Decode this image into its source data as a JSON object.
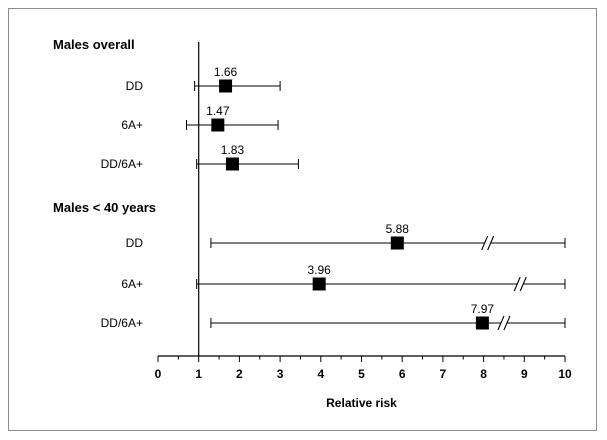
{
  "chart_data": {
    "type": "forest",
    "xlabel": "Relative risk",
    "xlim": [
      0,
      10
    ],
    "ticks": [
      0,
      1,
      2,
      3,
      4,
      5,
      6,
      7,
      8,
      9,
      10
    ],
    "reference_line": 1,
    "groups": [
      {
        "label": "Males overall",
        "rows": [
          {
            "label": "DD",
            "estimate": 1.66,
            "estimate_label": "1.66",
            "ci_low": 0.9,
            "ci_high": 3.0,
            "axis_break": false
          },
          {
            "label": "6A+",
            "estimate": 1.47,
            "estimate_label": "1.47",
            "ci_low": 0.7,
            "ci_high": 2.95,
            "axis_break": false
          },
          {
            "label": "DD/6A+",
            "estimate": 1.83,
            "estimate_label": "1.83",
            "ci_low": 0.95,
            "ci_high": 3.45,
            "axis_break": false
          }
        ]
      },
      {
        "label": "Males < 40 years",
        "rows": [
          {
            "label": "DD",
            "estimate": 5.88,
            "estimate_label": "5.88",
            "ci_low": 1.3,
            "ci_high": 10.0,
            "axis_break": true,
            "break_at": 8.1
          },
          {
            "label": "6A+",
            "estimate": 3.96,
            "estimate_label": "3.96",
            "ci_low": 0.95,
            "ci_high": 10.0,
            "axis_break": true,
            "break_at": 8.9
          },
          {
            "label": "DD/6A+",
            "estimate": 7.97,
            "estimate_label": "7.97",
            "ci_low": 1.3,
            "ci_high": 10.0,
            "axis_break": true,
            "break_at": 8.5
          }
        ]
      }
    ],
    "colors": {
      "marker": "#000000",
      "line": "#000000",
      "frame": "#8c8c8c"
    }
  }
}
